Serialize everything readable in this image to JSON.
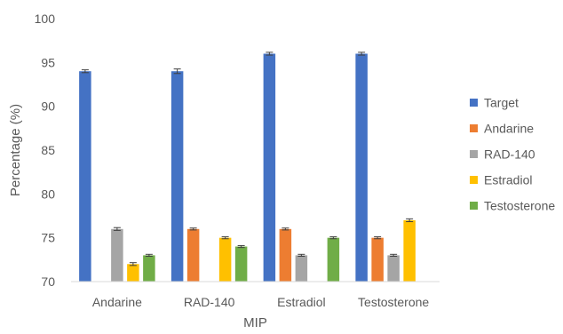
{
  "chart_data": {
    "type": "bar",
    "title": "",
    "xlabel": "MIP",
    "ylabel": "Percentage (%)",
    "ylim": [
      70,
      100
    ],
    "yticks": [
      70,
      75,
      80,
      85,
      90,
      95,
      100
    ],
    "grid": false,
    "legend_position": "right",
    "categories": [
      "Andarine",
      "RAD-140",
      "Estradiol",
      "Testosterone"
    ],
    "series": [
      {
        "name": "Target",
        "color": "#4472C4",
        "values": [
          94,
          94,
          96,
          96
        ],
        "errors": [
          0.1,
          0.2,
          0.1,
          0.1
        ]
      },
      {
        "name": "Andarine",
        "color": "#ED7D31",
        "values": [
          70,
          76,
          76,
          75
        ],
        "errors": [
          0,
          0.05,
          0.05,
          0.05
        ]
      },
      {
        "name": "RAD-140",
        "color": "#A5A5A5",
        "values": [
          76,
          70,
          73,
          73
        ],
        "errors": [
          0.1,
          0,
          0.05,
          0.05
        ]
      },
      {
        "name": "Estradiol",
        "color": "#FFC000",
        "values": [
          72,
          75,
          70,
          77
        ],
        "errors": [
          0.1,
          0.05,
          0,
          0.1
        ]
      },
      {
        "name": "Testosterone",
        "color": "#70AD47",
        "values": [
          73,
          74,
          75,
          70
        ],
        "errors": [
          0.05,
          0.05,
          0.05,
          0
        ]
      }
    ]
  }
}
